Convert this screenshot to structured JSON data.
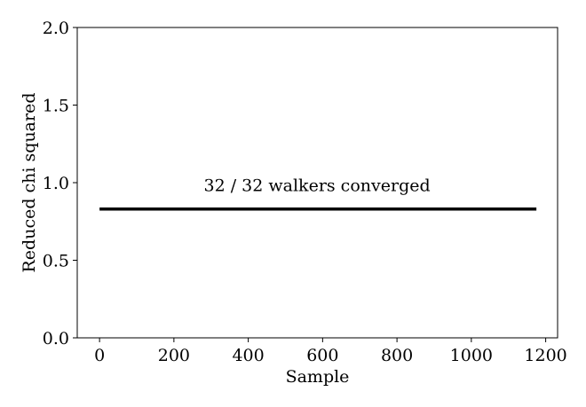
{
  "chart_data": {
    "type": "line",
    "xlabel": "Sample",
    "ylabel": "Reduced chi squared",
    "xlim": [
      -60,
      1232
    ],
    "ylim": [
      0.0,
      2.0
    ],
    "xticks": [
      0,
      200,
      400,
      600,
      800,
      1000,
      1200
    ],
    "xtick_labels": [
      "0",
      "200",
      "400",
      "600",
      "800",
      "1000",
      "1200"
    ],
    "yticks": [
      0.0,
      0.5,
      1.0,
      1.5,
      2.0
    ],
    "ytick_labels": [
      "0.0",
      "0.5",
      "1.0",
      "1.5",
      "2.0"
    ],
    "grid": false,
    "annotation": {
      "text": "32 / 32 walkers converged",
      "x": 585,
      "y": 0.98
    },
    "series": [
      {
        "color": "#000000",
        "walkers": 32,
        "x": [
          0,
          1175
        ],
        "y": [
          0.83,
          0.83
        ]
      }
    ]
  }
}
